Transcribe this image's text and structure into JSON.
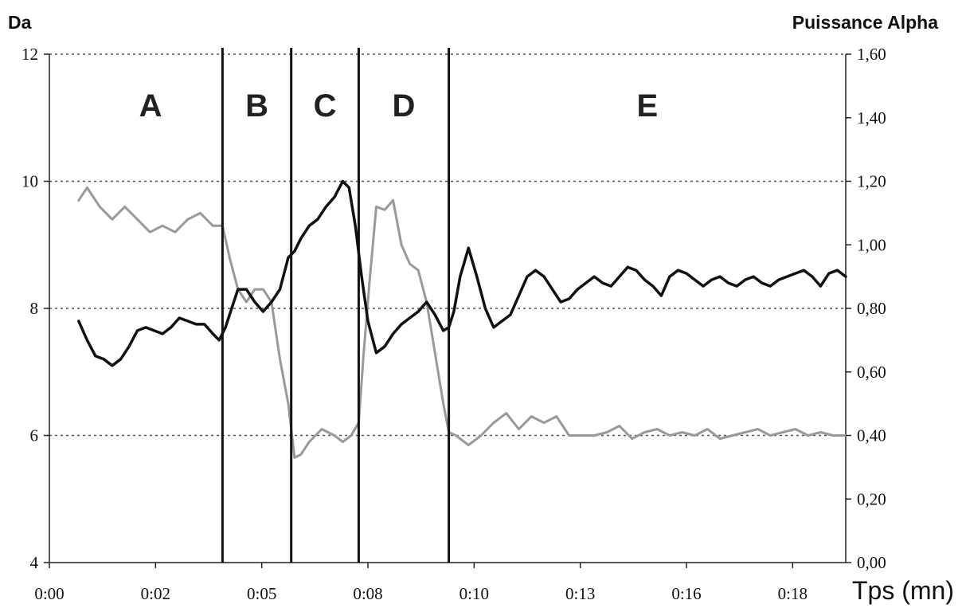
{
  "chart_data": {
    "type": "line",
    "title": "",
    "ylabel_left": "Da",
    "ylabel_right": "Puissance Alpha",
    "xlabel": "Tps (mn)",
    "x_ticks": [
      "0:00",
      "0:02",
      "0:05",
      "0:08",
      "0:10",
      "0:13",
      "0:16",
      "0:18"
    ],
    "x_range_minutes": [
      0,
      19.0
    ],
    "y_left_ticks": [
      "4",
      "6",
      "8",
      "10",
      "12"
    ],
    "y_left_range": [
      4,
      12
    ],
    "y_right_ticks": [
      "0,00",
      "0,20",
      "0,40",
      "0,60",
      "0,80",
      "1,00",
      "1,20",
      "1,40",
      "1,60"
    ],
    "y_right_range": [
      0,
      1.6
    ],
    "gridlines_left_values": [
      6,
      8,
      10,
      12
    ],
    "phases": [
      {
        "label": "A",
        "start_min": 0.7,
        "end_min": 4.13
      },
      {
        "label": "B",
        "start_min": 4.13,
        "end_min": 5.77
      },
      {
        "label": "C",
        "start_min": 5.77,
        "end_min": 7.38
      },
      {
        "label": "D",
        "start_min": 7.38,
        "end_min": 9.53
      },
      {
        "label": "E",
        "start_min": 9.53,
        "end_min": 19.0
      }
    ],
    "boundaries_min": [
      4.13,
      5.77,
      7.38,
      9.53
    ],
    "series": [
      {
        "axis": "left",
        "color": "#999999",
        "x": [
          0.7,
          0.9,
          1.2,
          1.5,
          1.8,
          2.1,
          2.4,
          2.7,
          3.0,
          3.3,
          3.6,
          3.9,
          4.13,
          4.3,
          4.5,
          4.7,
          4.9,
          5.1,
          5.3,
          5.5,
          5.7,
          5.85,
          6.0,
          6.2,
          6.5,
          6.8,
          7.0,
          7.2,
          7.38,
          7.5,
          7.65,
          7.8,
          8.0,
          8.2,
          8.4,
          8.6,
          8.8,
          9.0,
          9.2,
          9.4,
          9.53,
          9.7,
          10.0,
          10.3,
          10.6,
          10.9,
          11.2,
          11.5,
          11.8,
          12.1,
          12.4,
          12.7,
          13.0,
          13.3,
          13.6,
          13.9,
          14.2,
          14.5,
          14.8,
          15.1,
          15.4,
          15.7,
          16.0,
          16.3,
          16.6,
          16.9,
          17.2,
          17.5,
          17.8,
          18.1,
          18.4,
          18.7,
          19.0
        ],
        "values": [
          9.7,
          9.9,
          9.6,
          9.4,
          9.6,
          9.4,
          9.2,
          9.3,
          9.2,
          9.4,
          9.5,
          9.3,
          9.3,
          8.8,
          8.3,
          8.1,
          8.3,
          8.3,
          8.1,
          7.2,
          6.5,
          5.65,
          5.7,
          5.9,
          6.1,
          6.0,
          5.9,
          6.0,
          6.2,
          7.3,
          8.5,
          9.6,
          9.55,
          9.7,
          9.0,
          8.7,
          8.6,
          8.1,
          7.3,
          6.5,
          6.05,
          6.0,
          5.85,
          6.0,
          6.2,
          6.35,
          6.1,
          6.3,
          6.2,
          6.3,
          6.0,
          6.0,
          6.0,
          6.05,
          6.15,
          5.95,
          6.05,
          6.1,
          6.0,
          6.05,
          6.0,
          6.1,
          5.95,
          6.0,
          6.05,
          6.1,
          6.0,
          6.05,
          6.1,
          6.0,
          6.05,
          6.0,
          6.0
        ]
      },
      {
        "axis": "left",
        "color": "#111111",
        "x": [
          0.7,
          0.9,
          1.1,
          1.3,
          1.5,
          1.7,
          1.9,
          2.1,
          2.3,
          2.5,
          2.7,
          2.9,
          3.1,
          3.3,
          3.5,
          3.7,
          3.9,
          4.05,
          4.2,
          4.35,
          4.5,
          4.7,
          4.9,
          5.1,
          5.3,
          5.5,
          5.7,
          5.85,
          6.0,
          6.2,
          6.4,
          6.6,
          6.8,
          7.0,
          7.15,
          7.3,
          7.45,
          7.6,
          7.8,
          8.0,
          8.2,
          8.4,
          8.6,
          8.8,
          9.0,
          9.2,
          9.4,
          9.53,
          9.65,
          9.8,
          10.0,
          10.2,
          10.4,
          10.6,
          10.8,
          11.0,
          11.2,
          11.4,
          11.6,
          11.8,
          12.0,
          12.2,
          12.4,
          12.6,
          12.8,
          13.0,
          13.2,
          13.4,
          13.6,
          13.8,
          14.0,
          14.2,
          14.4,
          14.6,
          14.8,
          15.0,
          15.2,
          15.4,
          15.6,
          15.8,
          16.0,
          16.2,
          16.4,
          16.6,
          16.8,
          17.0,
          17.2,
          17.4,
          17.6,
          17.8,
          18.0,
          18.2,
          18.4,
          18.6,
          18.8,
          19.0
        ],
        "values": [
          7.8,
          7.5,
          7.25,
          7.2,
          7.1,
          7.2,
          7.4,
          7.65,
          7.7,
          7.65,
          7.6,
          7.7,
          7.85,
          7.8,
          7.75,
          7.75,
          7.6,
          7.5,
          7.7,
          8.0,
          8.3,
          8.3,
          8.1,
          7.95,
          8.1,
          8.3,
          8.8,
          8.9,
          9.1,
          9.3,
          9.4,
          9.6,
          9.75,
          10.0,
          9.9,
          9.3,
          8.5,
          7.8,
          7.3,
          7.4,
          7.6,
          7.75,
          7.85,
          7.95,
          8.1,
          7.9,
          7.65,
          7.7,
          7.95,
          8.5,
          8.95,
          8.5,
          8.0,
          7.7,
          7.8,
          7.9,
          8.2,
          8.5,
          8.6,
          8.5,
          8.3,
          8.1,
          8.15,
          8.3,
          8.4,
          8.5,
          8.4,
          8.35,
          8.5,
          8.65,
          8.6,
          8.45,
          8.35,
          8.2,
          8.5,
          8.6,
          8.55,
          8.45,
          8.35,
          8.45,
          8.5,
          8.4,
          8.35,
          8.45,
          8.5,
          8.4,
          8.35,
          8.45,
          8.5,
          8.55,
          8.6,
          8.5,
          8.35,
          8.55,
          8.6,
          8.5
        ]
      }
    ]
  }
}
